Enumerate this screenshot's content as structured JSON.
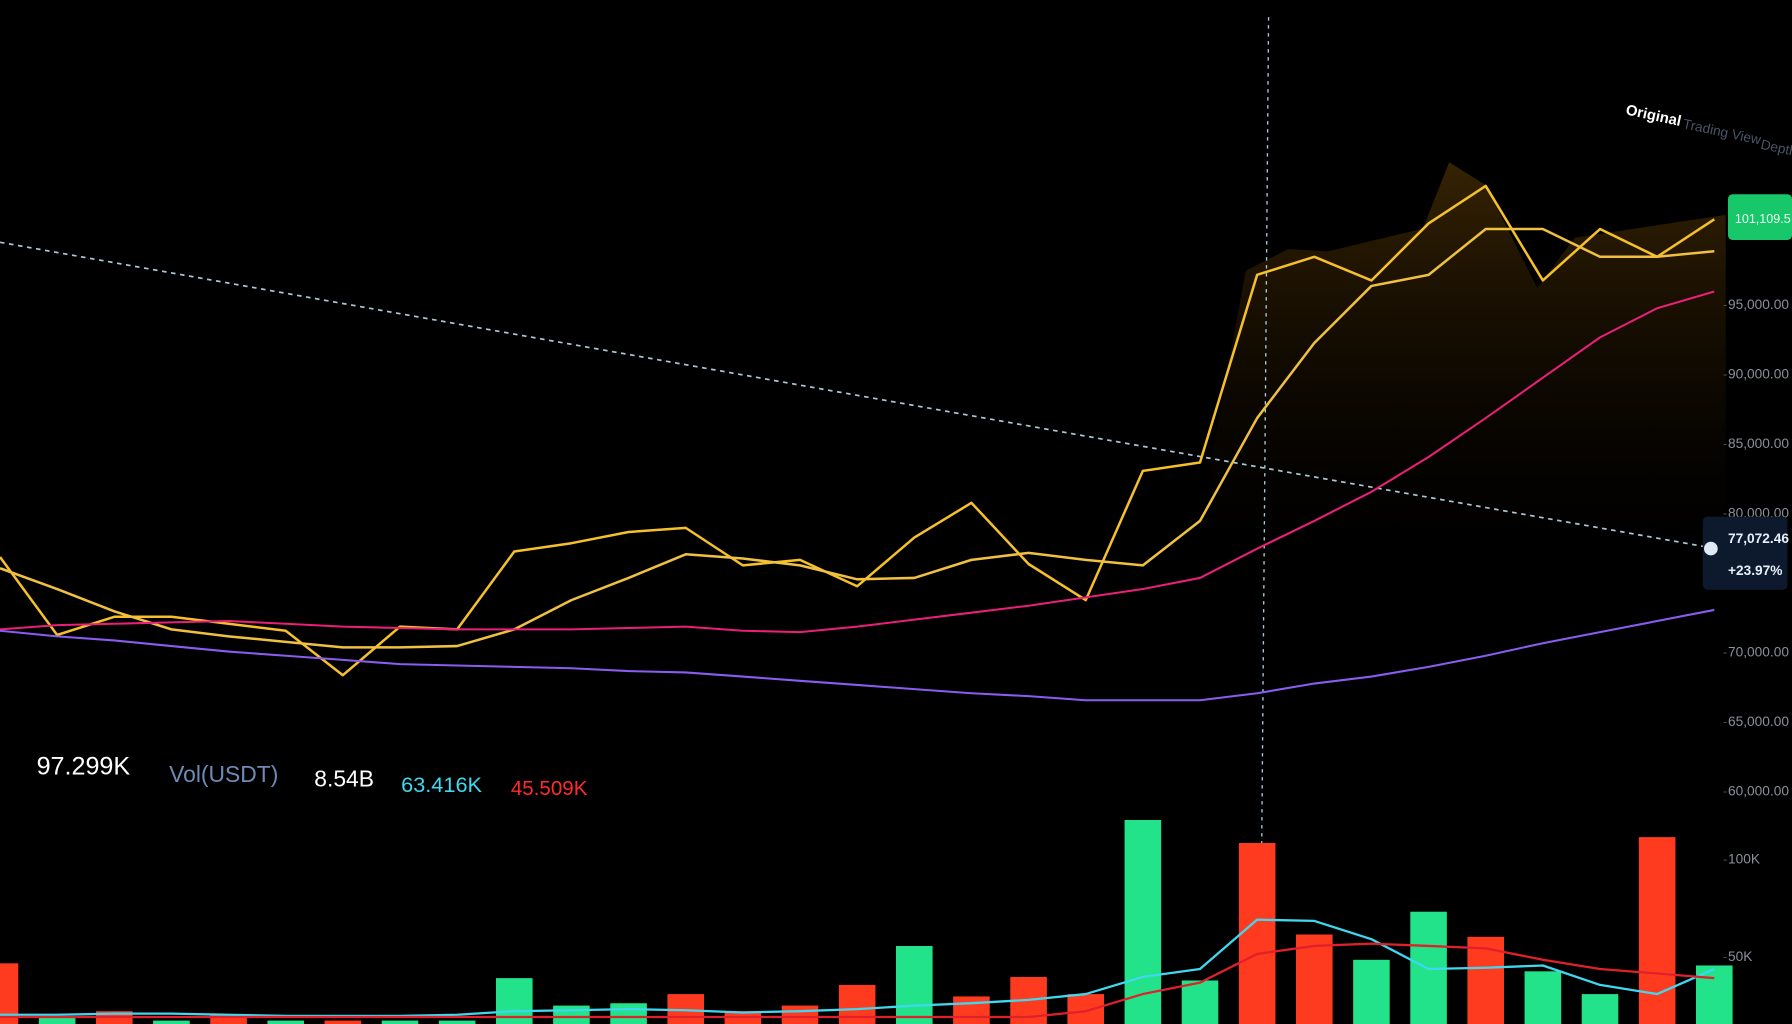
{
  "chart_data": [
    {
      "type": "line",
      "categories": [
        null,
        null,
        null,
        null,
        null,
        null,
        null,
        null,
        null,
        null,
        null,
        null,
        null,
        null,
        null,
        null,
        null,
        null,
        null,
        null,
        null,
        null,
        null,
        null,
        null,
        null,
        null,
        null,
        null,
        null,
        null
      ],
      "series": [
        {
          "color": "#f5c02a",
          "values": [
            76900,
            71300,
            72600,
            72600,
            72100,
            71600,
            68400,
            71900,
            71700,
            77300,
            77900,
            78700,
            79000,
            76300,
            76700,
            74800,
            78300,
            80800,
            76400,
            73800,
            83100,
            83700,
            97200,
            98500,
            96800,
            100900,
            103600,
            96800,
            100500,
            98500,
            101200
          ]
        },
        {
          "color": "#f0c040",
          "values": [
            76100,
            74600,
            73000,
            71700,
            71200,
            70800,
            70400,
            70400,
            70500,
            71700,
            73800,
            75400,
            77100,
            76800,
            76300,
            75300,
            75400,
            76700,
            77200,
            76700,
            76300,
            79500,
            86900,
            92300,
            96400,
            97200,
            100500,
            100500,
            98500,
            98500,
            98900
          ]
        },
        {
          "color": "#e8207a",
          "values": [
            71700,
            72000,
            72100,
            72200,
            72300,
            72100,
            71900,
            71800,
            71700,
            71700,
            71700,
            71800,
            71900,
            71600,
            71500,
            71900,
            72400,
            72900,
            73400,
            74000,
            74600,
            75400,
            77500,
            79500,
            81600,
            84100,
            86900,
            89800,
            92700,
            94800,
            96000
          ]
        },
        {
          "color": "#8a5cf0",
          "values": [
            71600,
            71200,
            70900,
            70500,
            70100,
            69800,
            69500,
            69200,
            69100,
            69000,
            68900,
            68700,
            68600,
            68300,
            68000,
            67700,
            67400,
            67100,
            66900,
            66600,
            66600,
            66600,
            67100,
            67800,
            68300,
            69000,
            69800,
            70700,
            71500,
            72300,
            73100
          ]
        }
      ],
      "ylim": [
        60000,
        115000
      ],
      "yticks": [
        {
          "value": 60000,
          "label": "60,000.00"
        },
        {
          "value": 65000,
          "label": "65,000.00"
        },
        {
          "value": 70000,
          "label": "70,000.00"
        },
        {
          "value": 80000,
          "label": "80,000.00"
        },
        {
          "value": 85000,
          "label": "85,000.00"
        },
        {
          "value": 90000,
          "label": "90,000.00"
        },
        {
          "value": 95000,
          "label": "95,000.00"
        }
      ],
      "last_price_label": "101,109.5",
      "marker_price": "77,072.46",
      "marker_change": "+23.97%"
    },
    {
      "type": "bar",
      "status": [
        "97.299K",
        "Vol(USDT)",
        "8.54B",
        "63.416K",
        "45.509K"
      ],
      "categories": [
        null,
        null,
        null,
        null,
        null,
        null,
        null,
        null,
        null,
        null,
        null,
        null,
        null,
        null,
        null,
        null,
        null,
        null,
        null,
        null,
        null,
        null,
        null,
        null,
        null,
        null,
        null,
        null,
        null,
        null,
        null
      ],
      "values": [
        47000,
        19400,
        22400,
        17600,
        20600,
        17600,
        17600,
        17600,
        17600,
        39400,
        25300,
        26500,
        31200,
        22400,
        25300,
        35900,
        55900,
        30000,
        40000,
        31200,
        120600,
        38200,
        108800,
        61800,
        48800,
        73500,
        60600,
        42900,
        31200,
        111800,
        45900
      ],
      "colors": [
        "#ff3b1f",
        "#22e38a",
        "#ff3b1f",
        "#22e38a",
        "#ff3b1f",
        "#22e38a",
        "#ff3b1f",
        "#22e38a",
        "#22e38a",
        "#22e38a",
        "#22e38a",
        "#22e38a",
        "#ff3b1f",
        "#ff3b1f",
        "#ff3b1f",
        "#ff3b1f",
        "#22e38a",
        "#ff3b1f",
        "#ff3b1f",
        "#ff3b1f",
        "#22e38a",
        "#22e38a",
        "#ff3b1f",
        "#ff3b1f",
        "#22e38a",
        "#22e38a",
        "#ff3b1f",
        "#22e38a",
        "#22e38a",
        "#ff3b1f",
        "#22e38a"
      ],
      "series": [
        {
          "color": "#3fd8f0",
          "values": [
            20600,
            20600,
            21200,
            21200,
            20600,
            20000,
            20000,
            20000,
            20600,
            22400,
            22900,
            23500,
            22900,
            21800,
            22400,
            23500,
            25300,
            26500,
            28200,
            31200,
            40000,
            44100,
            69400,
            68800,
            59400,
            44100,
            44700,
            45900,
            35900,
            31200,
            44100
          ]
        },
        {
          "color": "#e0202a",
          "values": [
            19400,
            19400,
            19400,
            19400,
            19400,
            19400,
            19400,
            19400,
            19400,
            19400,
            19400,
            19400,
            19400,
            19400,
            19400,
            19400,
            19400,
            19400,
            19400,
            22400,
            31200,
            37100,
            51800,
            55900,
            57100,
            55900,
            54700,
            48800,
            44100,
            41800,
            39400
          ]
        }
      ],
      "ylim": [
        0,
        125000
      ],
      "yticks": [
        {
          "value": 50000,
          "label": "50K"
        },
        {
          "value": 100000,
          "label": "100K"
        }
      ]
    }
  ],
  "toolbar": {
    "tabs": [
      "Original",
      "Trading View",
      "Depth"
    ]
  }
}
